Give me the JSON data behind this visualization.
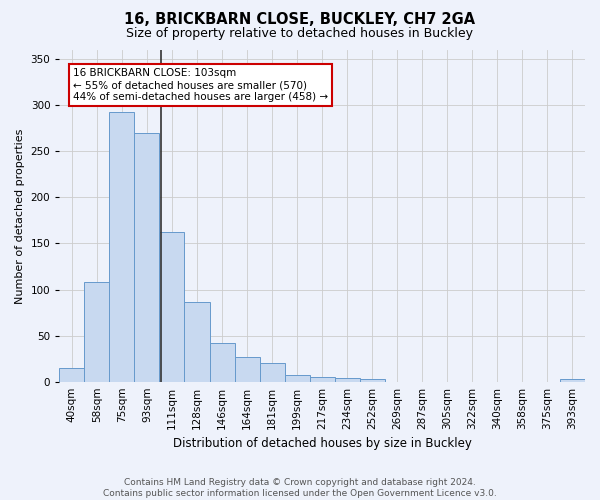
{
  "title": "16, BRICKBARN CLOSE, BUCKLEY, CH7 2GA",
  "subtitle": "Size of property relative to detached houses in Buckley",
  "xlabel": "Distribution of detached houses by size in Buckley",
  "ylabel": "Number of detached properties",
  "categories": [
    "40sqm",
    "58sqm",
    "75sqm",
    "93sqm",
    "111sqm",
    "128sqm",
    "146sqm",
    "164sqm",
    "181sqm",
    "199sqm",
    "217sqm",
    "234sqm",
    "252sqm",
    "269sqm",
    "287sqm",
    "305sqm",
    "322sqm",
    "340sqm",
    "358sqm",
    "375sqm",
    "393sqm"
  ],
  "bar_heights": [
    15,
    108,
    293,
    270,
    162,
    87,
    42,
    27,
    20,
    7,
    5,
    4,
    3,
    0,
    0,
    0,
    0,
    0,
    0,
    0,
    3
  ],
  "bar_color": "#c8d9f0",
  "bar_edge_color": "#6699cc",
  "vline_index": 3.556,
  "vline_color": "#333333",
  "annotation_text_line1": "16 BRICKBARN CLOSE: 103sqm",
  "annotation_text_line2": "← 55% of detached houses are smaller (570)",
  "annotation_text_line3": "44% of semi-detached houses are larger (458) →",
  "annotation_box_facecolor": "#ffffff",
  "annotation_box_edgecolor": "#cc0000",
  "footer1": "Contains HM Land Registry data © Crown copyright and database right 2024.",
  "footer2": "Contains public sector information licensed under the Open Government Licence v3.0.",
  "ylim": [
    0,
    360
  ],
  "yticks": [
    0,
    50,
    100,
    150,
    200,
    250,
    300,
    350
  ],
  "bg_color": "#eef2fb",
  "grid_color": "#cccccc",
  "title_fontsize": 10.5,
  "subtitle_fontsize": 9,
  "ylabel_fontsize": 8,
  "xlabel_fontsize": 8.5,
  "tick_fontsize": 7.5,
  "annot_fontsize": 7.5,
  "footer_fontsize": 6.5
}
